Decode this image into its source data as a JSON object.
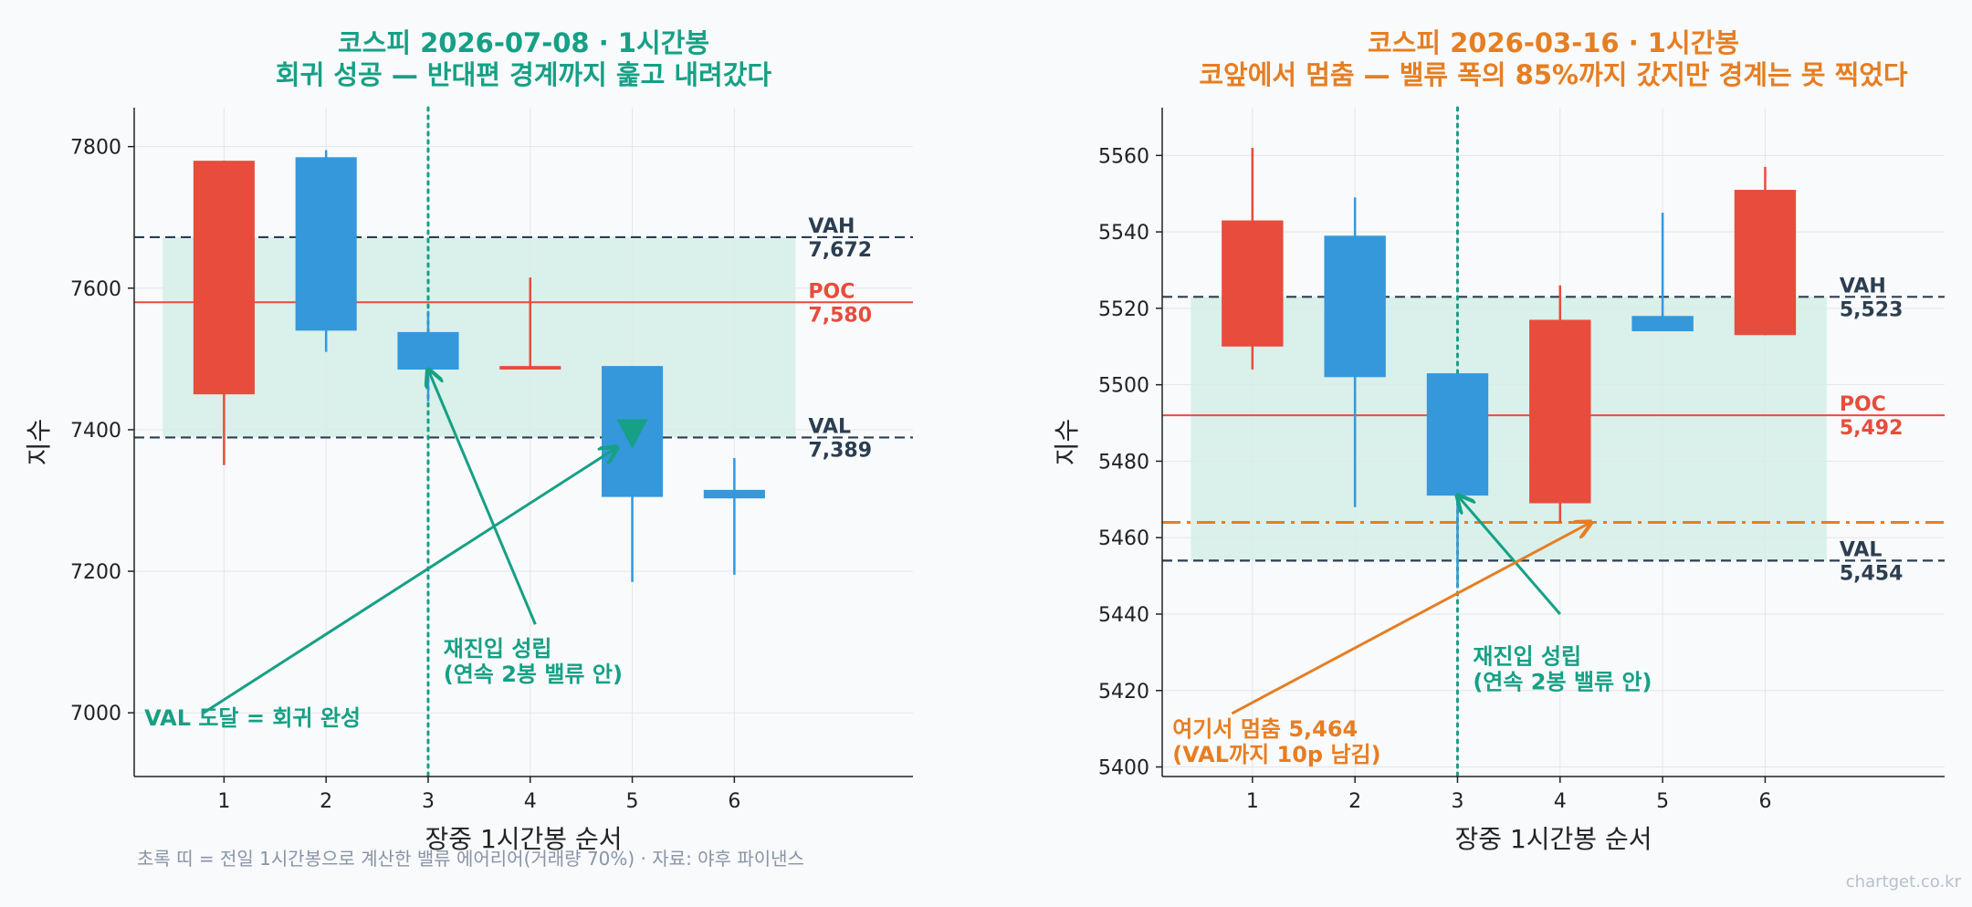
{
  "footnote": "초록 띠 = 전일 1시간봉으로 계산한 밸류 에어리어(거래량 70%) · 자료: 야후 파이낸스",
  "watermark": "chartget.co.kr",
  "colors": {
    "up": "#e74c3c",
    "down": "#3498db",
    "teal": "#16a085",
    "orange": "#e67e22",
    "dark": "#2c3e50",
    "band": "#d5ede6",
    "grid": "#e6e6e6"
  },
  "chart_data": [
    {
      "type": "candlestick",
      "title": "코스피 2026-07-08 · 1시간봉",
      "subtitle": "회귀 성공 — 반대편 경계까지 훑고 내려갔다",
      "title_color": "#16a085",
      "xlabel": "장중 1시간봉 순서",
      "ylabel": "지수",
      "x_ticks": [
        1,
        2,
        3,
        4,
        5,
        6
      ],
      "y_ticks": [
        7000,
        7200,
        7400,
        7600,
        7800
      ],
      "ylim": [
        6910,
        7855
      ],
      "xlim": [
        0.12,
        7.75
      ],
      "grid": true,
      "candles": [
        {
          "x": 1,
          "open": 7450,
          "high": 7780,
          "low": 7350,
          "close": 7780
        },
        {
          "x": 2,
          "open": 7785,
          "high": 7795,
          "low": 7510,
          "close": 7540
        },
        {
          "x": 3,
          "open": 7538,
          "high": 7568,
          "low": 7440,
          "close": 7485
        },
        {
          "x": 4,
          "open": 7485,
          "high": 7615,
          "low": 7485,
          "close": 7490
        },
        {
          "x": 5,
          "open": 7490,
          "high": 7490,
          "low": 7185,
          "close": 7305
        },
        {
          "x": 6,
          "open": 7315,
          "high": 7360,
          "low": 7195,
          "close": 7303
        }
      ],
      "value_area": {
        "low": 7389,
        "high": 7672,
        "x_from": 0.4,
        "x_to": 6.6
      },
      "levels": [
        {
          "name": "VAH",
          "value": 7672,
          "label": "7,672",
          "color": "#2c3e50",
          "style": "dashed"
        },
        {
          "name": "POC",
          "value": 7580,
          "label": "7,580",
          "color": "#e74c3c",
          "style": "solid"
        },
        {
          "name": "VAL",
          "value": 7389,
          "label": "7,389",
          "color": "#2c3e50",
          "style": "dashed"
        }
      ],
      "vline": {
        "x": 3,
        "color": "#16a085"
      },
      "marker": {
        "x": 5,
        "y": 7389,
        "shape": "triangle-down",
        "color": "#16a085"
      },
      "annotations": [
        {
          "text": [
            "재진입 성립",
            "(연속 2봉 밸류 안)"
          ],
          "color": "#16a085",
          "text_x": 3.15,
          "text_y": 7080,
          "arrow_from": [
            4.05,
            7125
          ],
          "arrow_to": [
            3.0,
            7485
          ]
        },
        {
          "text": [
            "VAL 도달 = 회귀 완성"
          ],
          "color": "#16a085",
          "text_x": 0.22,
          "text_y": 6982,
          "arrow_from": [
            0.8,
            7000
          ],
          "arrow_to": [
            4.85,
            7375
          ]
        }
      ]
    },
    {
      "type": "candlestick",
      "title": "코스피 2026-03-16 · 1시간봉",
      "subtitle": "코앞에서 멈춤 — 밸류 폭의 85%까지 갔지만 경계는 못 찍었다",
      "title_color": "#e67e22",
      "xlabel": "장중 1시간봉 순서",
      "ylabel": "지수",
      "x_ticks": [
        1,
        2,
        3,
        4,
        5,
        6
      ],
      "y_ticks": [
        5400,
        5420,
        5440,
        5460,
        5480,
        5500,
        5520,
        5540,
        5560
      ],
      "ylim": [
        5397.5,
        5572.5
      ],
      "xlim": [
        0.12,
        7.75
      ],
      "grid": true,
      "candles": [
        {
          "x": 1,
          "open": 5510,
          "high": 5562,
          "low": 5504,
          "close": 5543
        },
        {
          "x": 2,
          "open": 5539,
          "high": 5549,
          "low": 5468,
          "close": 5502
        },
        {
          "x": 3,
          "open": 5503,
          "high": 5503,
          "low": 5447,
          "close": 5471
        },
        {
          "x": 4,
          "open": 5469,
          "high": 5526,
          "low": 5464,
          "close": 5517
        },
        {
          "x": 5,
          "open": 5518,
          "high": 5545,
          "low": 5514,
          "close": 5514
        },
        {
          "x": 6,
          "open": 5513,
          "high": 5557,
          "low": 5513,
          "close": 5551
        }
      ],
      "value_area": {
        "low": 5454,
        "high": 5523,
        "x_from": 0.4,
        "x_to": 6.6
      },
      "levels": [
        {
          "name": "VAH",
          "value": 5523,
          "label": "5,523",
          "color": "#2c3e50",
          "style": "dashed"
        },
        {
          "name": "POC",
          "value": 5492,
          "label": "5,492",
          "color": "#e74c3c",
          "style": "solid"
        },
        {
          "name": "VAL",
          "value": 5454,
          "label": "5,454",
          "color": "#2c3e50",
          "style": "dashed"
        },
        {
          "name": "",
          "value": 5464,
          "label": "",
          "color": "#e67e22",
          "style": "dashdot"
        }
      ],
      "vline": {
        "x": 3,
        "color": "#16a085"
      },
      "annotations": [
        {
          "text": [
            "재진입 성립",
            "(연속 2봉 밸류 안)"
          ],
          "color": "#16a085",
          "text_x": 3.15,
          "text_y": 5427,
          "arrow_from": [
            4.0,
            5440
          ],
          "arrow_to": [
            3.0,
            5471
          ]
        },
        {
          "text": [
            "여기서 멈춤 5,464",
            "(VAL까지 10p 남김)"
          ],
          "color": "#e67e22",
          "text_x": 0.22,
          "text_y": 5408,
          "arrow_from": [
            0.8,
            5414
          ],
          "arrow_to": [
            4.3,
            5464
          ]
        }
      ]
    }
  ]
}
